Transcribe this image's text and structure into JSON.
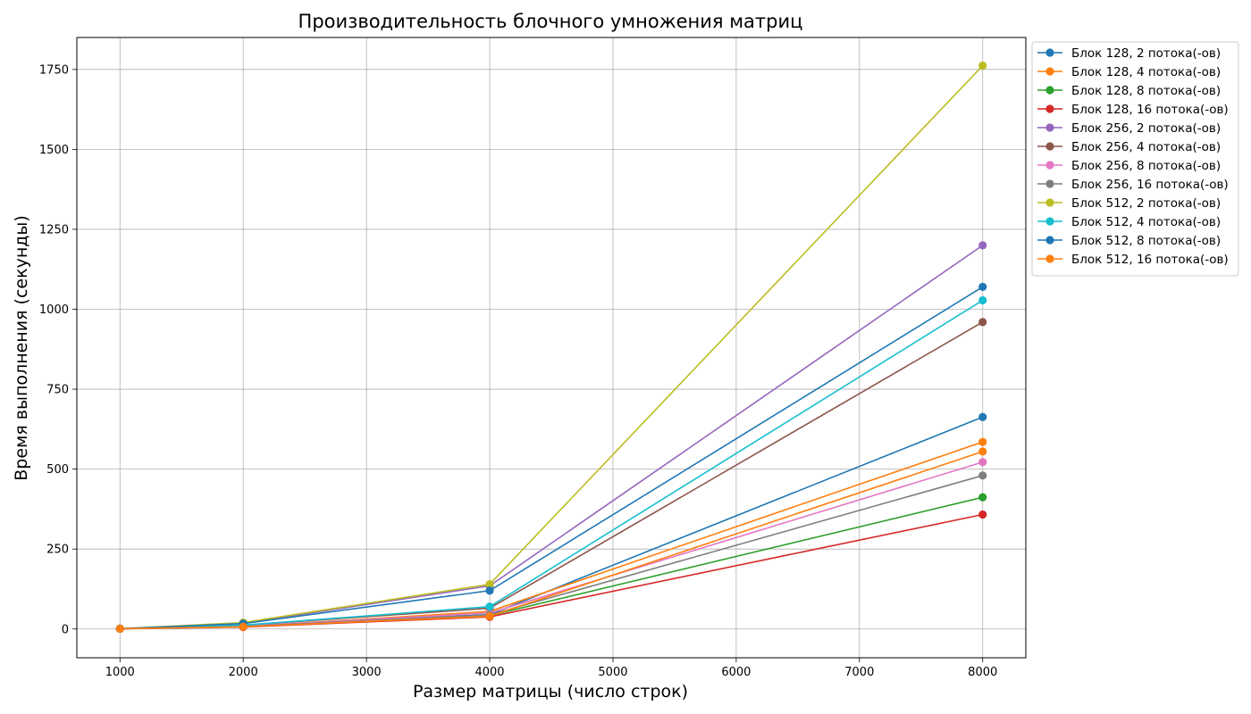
{
  "chart_data": {
    "type": "line",
    "title": "Производительность блочного умножения матриц",
    "xlabel": "Размер матрицы (число строк)",
    "ylabel": "Время выполнения (секунды)",
    "x": [
      1000,
      2000,
      4000,
      8000
    ],
    "xlim": [
      650,
      8350
    ],
    "ylim": [
      -90,
      1850
    ],
    "xticks": [
      1000,
      2000,
      3000,
      4000,
      5000,
      6000,
      7000,
      8000
    ],
    "yticks": [
      0,
      250,
      500,
      750,
      1000,
      1250,
      1500,
      1750
    ],
    "grid": true,
    "legend_position": "outside-top-right",
    "series": [
      {
        "name": "Блок 128, 2 потока(-ов)",
        "color": "#1f77b4",
        "values": [
          1,
          10,
          45,
          663
        ]
      },
      {
        "name": "Блок 128, 4 потока(-ов)",
        "color": "#ff7f0e",
        "values": [
          1,
          8,
          55,
          585
        ]
      },
      {
        "name": "Блок 128, 8 потока(-ов)",
        "color": "#2ca02c",
        "values": [
          1,
          7,
          42,
          412
        ]
      },
      {
        "name": "Блок 128, 16 потока(-ов)",
        "color": "#d62728",
        "values": [
          1,
          6,
          38,
          358
        ]
      },
      {
        "name": "Блок 256, 2 потока(-ов)",
        "color": "#9467bd",
        "values": [
          1,
          18,
          135,
          1200
        ]
      },
      {
        "name": "Блок 256, 4 потока(-ов)",
        "color": "#8c564b",
        "values": [
          1,
          12,
          65,
          960
        ]
      },
      {
        "name": "Блок 256, 8 потока(-ов)",
        "color": "#e377c2",
        "values": [
          1,
          9,
          50,
          522
        ]
      },
      {
        "name": "Блок 256, 16 потока(-ов)",
        "color": "#7f7f7f",
        "values": [
          1,
          8,
          44,
          480
        ]
      },
      {
        "name": "Блок 512, 2 потока(-ов)",
        "color": "#bcbd22",
        "values": [
          1,
          20,
          140,
          1762
        ]
      },
      {
        "name": "Блок 512, 4 потока(-ов)",
        "color": "#17becf",
        "values": [
          1,
          12,
          70,
          1028
        ]
      },
      {
        "name": "Блок 512, 8 потока(-ов)",
        "color": "#1f77b4",
        "values": [
          1,
          17,
          120,
          1070
        ]
      },
      {
        "name": "Блок 512, 16 потока(-ов)",
        "color": "#ff7f0e",
        "values": [
          1,
          7,
          40,
          555
        ]
      }
    ]
  }
}
